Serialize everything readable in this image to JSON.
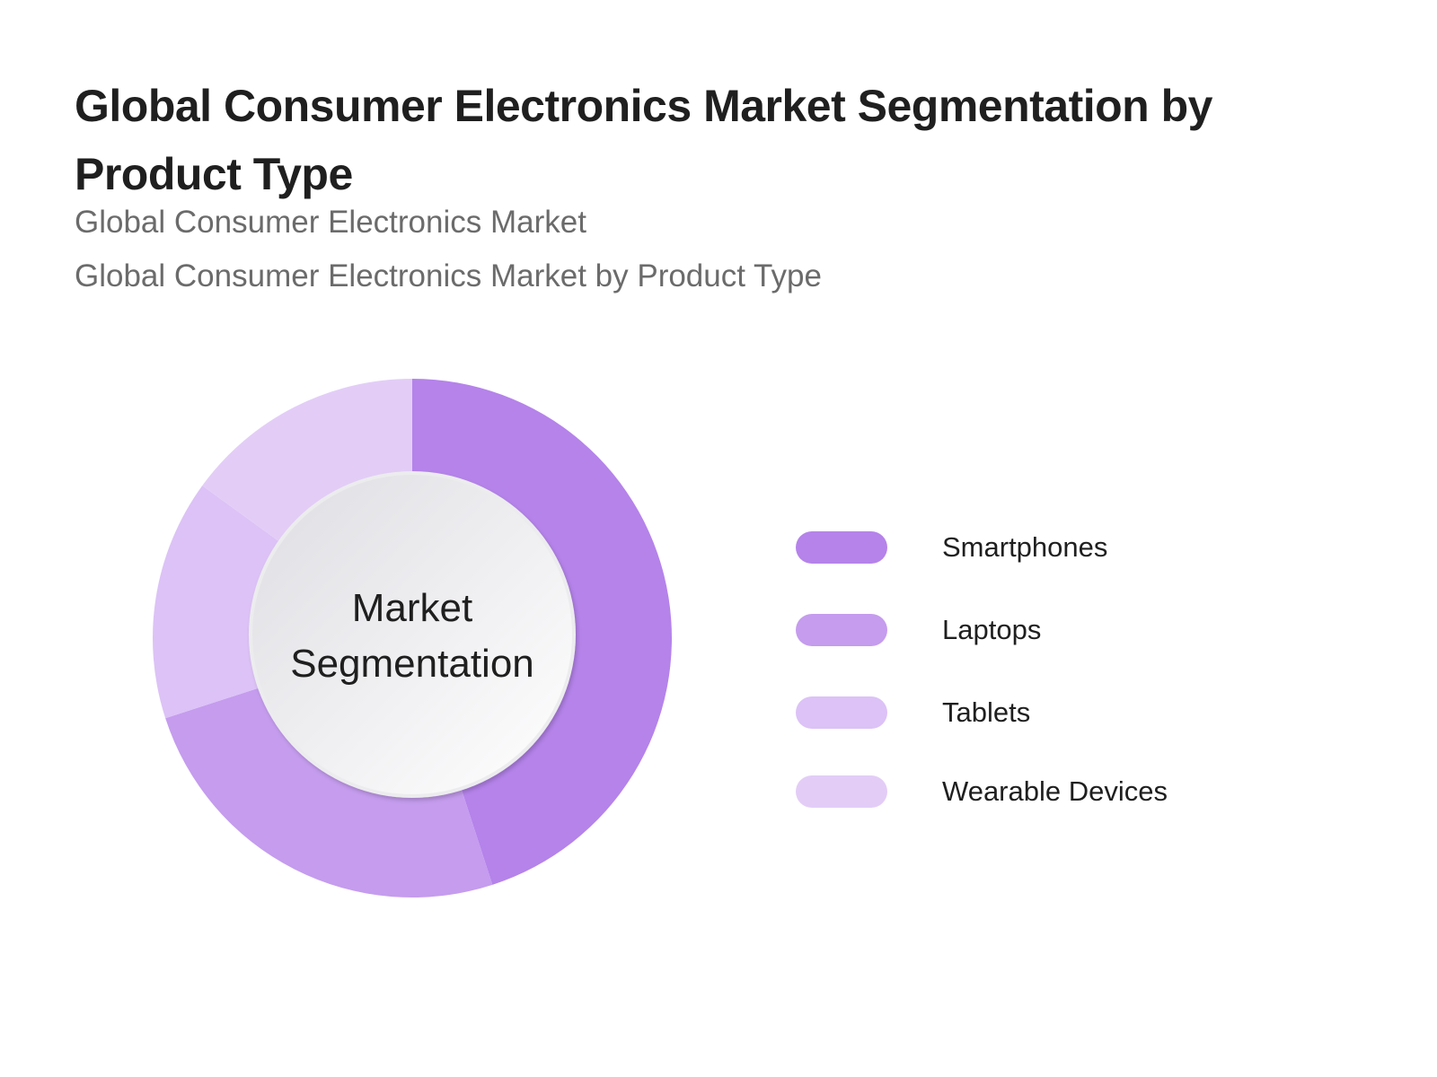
{
  "header": {
    "title": "Global Consumer Electronics Market Segmentation by Product Type",
    "subtitle_1": "Global Consumer Electronics Market",
    "subtitle_2": "Global Consumer Electronics Market by Product Type"
  },
  "center_label": {
    "line1": "Market",
    "line2": "Segmentation"
  },
  "legend": {
    "items": [
      {
        "label": "Smartphones",
        "color": "#b583ea"
      },
      {
        "label": "Laptops",
        "color": "#c59cee"
      },
      {
        "label": "Tablets",
        "color": "#dcc2f6"
      },
      {
        "label": "Wearable Devices",
        "color": "#e3cdf7"
      }
    ]
  },
  "chart_data": {
    "type": "pie",
    "subtype": "donut",
    "title": "Global Consumer Electronics Market Segmentation by Product Type",
    "subtitle": [
      "Global Consumer Electronics Market",
      "Global Consumer Electronics Market by Product Type"
    ],
    "center_text": "Market Segmentation",
    "categories": [
      "Smartphones",
      "Laptops",
      "Tablets",
      "Wearable Devices"
    ],
    "values": [
      45,
      25,
      15,
      15
    ],
    "unit": "% share (estimated from slice angles)",
    "colors": [
      "#b583ea",
      "#c59cee",
      "#dcc2f6",
      "#e3cdf7"
    ],
    "start_angle": "12 o'clock, clockwise",
    "legend_position": "right"
  }
}
